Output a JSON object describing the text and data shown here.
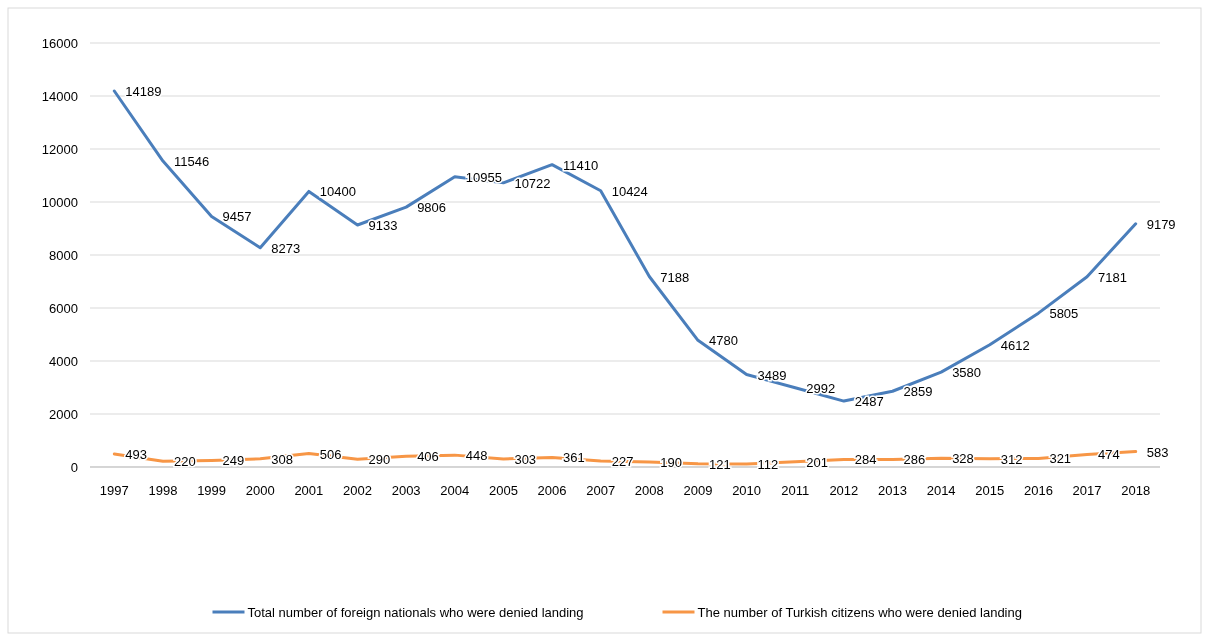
{
  "chart_data": {
    "type": "line",
    "categories": [
      "1997",
      "1998",
      "1999",
      "2000",
      "2001",
      "2002",
      "2003",
      "2004",
      "2005",
      "2006",
      "2007",
      "2008",
      "2009",
      "2010",
      "2011",
      "2012",
      "2013",
      "2014",
      "2015",
      "2016",
      "2017",
      "2018"
    ],
    "series": [
      {
        "name": "Total number of foreign nationals who were denied landing",
        "color": "#4a7ebb",
        "values": [
          14189,
          11546,
          9457,
          8273,
          10400,
          9133,
          9806,
          10955,
          10722,
          11410,
          10424,
          7188,
          4780,
          3489,
          2992,
          2487,
          2859,
          3580,
          4612,
          5805,
          7181,
          9179
        ]
      },
      {
        "name": "The number of Turkish citizens who were denied landing",
        "color": "#f79646",
        "values": [
          493,
          220,
          249,
          308,
          506,
          290,
          406,
          448,
          303,
          361,
          227,
          190,
          121,
          112,
          201,
          284,
          286,
          328,
          312,
          321,
          474,
          583
        ]
      }
    ],
    "ylim": [
      0,
      16000
    ],
    "yticks": [
      0,
      2000,
      4000,
      6000,
      8000,
      10000,
      12000,
      14000,
      16000
    ],
    "grid": "y",
    "legend": "bottom",
    "data_labels": true,
    "marker": "none",
    "line_style": "solid"
  }
}
